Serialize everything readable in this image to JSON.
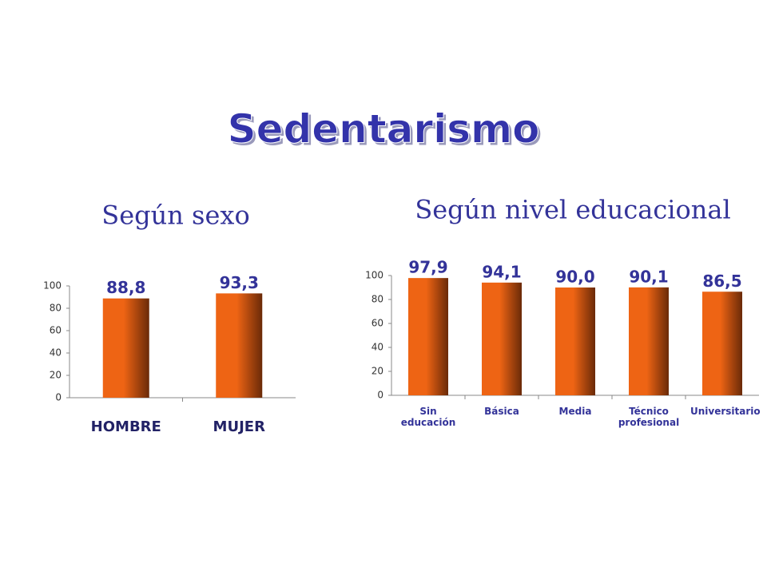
{
  "title": "Sedentarismo",
  "chart_data": [
    {
      "type": "bar",
      "title": "Según sexo",
      "categories": [
        "HOMBRE",
        "MUJER"
      ],
      "values": [
        88.8,
        93.3
      ],
      "value_labels": [
        "88,8",
        "93,3"
      ],
      "color": "#ee6414",
      "ylim": [
        0,
        100
      ],
      "yticks": [
        0,
        20,
        40,
        60,
        80,
        100
      ],
      "grid": false
    },
    {
      "type": "bar",
      "title": "Según nivel educacional",
      "categories": [
        "Sin educación",
        "Básica",
        "Media",
        "Técnico profesional",
        "Universitario"
      ],
      "values": [
        97.9,
        94.1,
        90.0,
        90.1,
        86.5
      ],
      "value_labels": [
        "97,9",
        "94,1",
        "90,0",
        "90,1",
        "86,5"
      ],
      "color": "#ee6414",
      "ylim": [
        0,
        100
      ],
      "yticks": [
        0,
        20,
        40,
        60,
        80,
        100
      ],
      "grid": false
    }
  ]
}
